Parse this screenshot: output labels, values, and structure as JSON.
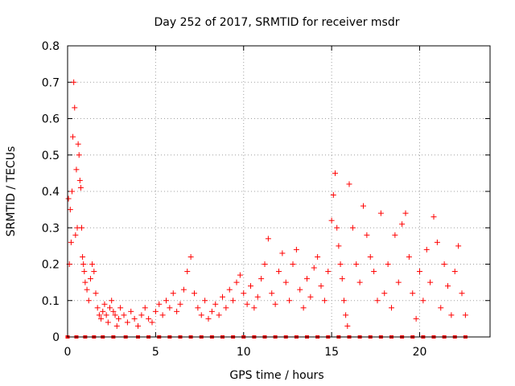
{
  "chart_data": {
    "type": "scatter",
    "title": "Day 252 of 2017, SRMTID for receiver msdr",
    "xlabel": "GPS time / hours",
    "ylabel": "SRMTID / TECUs",
    "xlim": [
      0,
      24
    ],
    "ylim": [
      0,
      0.8
    ],
    "xticks": [
      0,
      5,
      10,
      15,
      20
    ],
    "yticks": [
      0,
      0.1,
      0.2,
      0.3,
      0.4,
      0.5,
      0.6,
      0.7,
      0.8
    ],
    "xtick_labels": [
      "0",
      "5",
      "10",
      "15",
      "20"
    ],
    "ytick_labels": [
      "0",
      "0.1",
      "0.2",
      "0.3",
      "0.4",
      "0.5",
      "0.6",
      "0.7",
      "0.8"
    ],
    "grid": true,
    "marker": "+",
    "marker_color": "#ff0000",
    "series": [
      {
        "name": "SRMTID",
        "x": [
          0.05,
          0.1,
          0.15,
          0.2,
          0.25,
          0.3,
          0.35,
          0.4,
          0.45,
          0.5,
          0.55,
          0.6,
          0.65,
          0.7,
          0.75,
          0.8,
          0.85,
          0.9,
          0.95,
          1.0,
          1.1,
          1.2,
          1.3,
          1.4,
          1.5,
          1.6,
          1.7,
          1.8,
          1.9,
          2.0,
          2.1,
          2.2,
          2.3,
          2.4,
          2.5,
          2.6,
          2.7,
          2.8,
          2.9,
          3.0,
          3.2,
          3.4,
          3.6,
          3.8,
          4.0,
          4.2,
          4.4,
          4.6,
          4.8,
          5.0,
          5.2,
          5.4,
          5.6,
          5.8,
          6.0,
          6.2,
          6.4,
          6.6,
          6.8,
          7.0,
          7.2,
          7.4,
          7.6,
          7.8,
          8.0,
          8.2,
          8.4,
          8.6,
          8.8,
          9.0,
          9.2,
          9.4,
          9.6,
          9.8,
          10.0,
          10.2,
          10.4,
          10.6,
          10.8,
          11.0,
          11.2,
          11.4,
          11.6,
          11.8,
          12.0,
          12.2,
          12.4,
          12.6,
          12.8,
          13.0,
          13.2,
          13.4,
          13.6,
          13.8,
          14.0,
          14.2,
          14.4,
          14.6,
          14.8,
          15.0,
          15.1,
          15.2,
          15.3,
          15.4,
          15.5,
          15.6,
          15.7,
          15.8,
          15.9,
          16.0,
          16.2,
          16.4,
          16.6,
          16.8,
          17.0,
          17.2,
          17.4,
          17.6,
          17.8,
          18.0,
          18.2,
          18.4,
          18.6,
          18.8,
          19.0,
          19.2,
          19.4,
          19.6,
          19.8,
          20.0,
          20.2,
          20.4,
          20.6,
          20.8,
          21.0,
          21.2,
          21.4,
          21.6,
          21.8,
          22.0,
          22.2,
          22.4,
          22.6
        ],
        "y": [
          0.38,
          0.2,
          0.35,
          0.26,
          0.4,
          0.55,
          0.7,
          0.63,
          0.28,
          0.46,
          0.3,
          0.53,
          0.5,
          0.43,
          0.41,
          0.3,
          0.22,
          0.2,
          0.18,
          0.15,
          0.13,
          0.1,
          0.16,
          0.2,
          0.18,
          0.12,
          0.08,
          0.06,
          0.05,
          0.07,
          0.09,
          0.06,
          0.04,
          0.08,
          0.1,
          0.07,
          0.06,
          0.03,
          0.05,
          0.08,
          0.06,
          0.04,
          0.07,
          0.05,
          0.03,
          0.06,
          0.08,
          0.05,
          0.04,
          0.07,
          0.09,
          0.06,
          0.1,
          0.08,
          0.12,
          0.07,
          0.09,
          0.13,
          0.18,
          0.22,
          0.12,
          0.08,
          0.06,
          0.1,
          0.05,
          0.07,
          0.09,
          0.06,
          0.11,
          0.08,
          0.13,
          0.1,
          0.15,
          0.17,
          0.12,
          0.09,
          0.14,
          0.08,
          0.11,
          0.16,
          0.2,
          0.27,
          0.12,
          0.09,
          0.18,
          0.23,
          0.15,
          0.1,
          0.2,
          0.24,
          0.13,
          0.08,
          0.16,
          0.11,
          0.19,
          0.22,
          0.14,
          0.1,
          0.18,
          0.32,
          0.39,
          0.45,
          0.3,
          0.25,
          0.2,
          0.16,
          0.1,
          0.06,
          0.03,
          0.42,
          0.3,
          0.2,
          0.15,
          0.36,
          0.28,
          0.22,
          0.18,
          0.1,
          0.34,
          0.12,
          0.2,
          0.08,
          0.28,
          0.15,
          0.31,
          0.34,
          0.22,
          0.12,
          0.05,
          0.18,
          0.1,
          0.24,
          0.15,
          0.33,
          0.26,
          0.08,
          0.2,
          0.14,
          0.06,
          0.18,
          0.25,
          0.12,
          0.06
        ],
        "baseline_x": [
          0,
          0.5,
          1,
          1.5,
          2,
          2.6,
          3.3,
          4,
          4.6,
          5.2,
          5.8,
          6.4,
          7,
          7.6,
          8.2,
          8.8,
          9.4,
          10,
          10.6,
          11.2,
          11.8,
          12.4,
          13,
          13.6,
          14.2,
          14.8,
          15.4,
          16,
          16.6,
          17.2,
          17.8,
          18.4,
          19,
          19.6,
          20.2,
          20.8,
          21.4,
          22,
          22.6
        ]
      }
    ]
  }
}
